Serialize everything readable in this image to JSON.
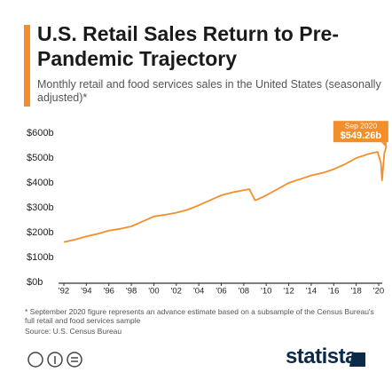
{
  "chart_data": {
    "type": "line",
    "title": "U.S. Retail Sales Return to Pre-Pandemic Trajectory",
    "subtitle": "Monthly retail and food services sales in the United States (seasonally adjusted)*",
    "footnote": "* September 2020 figure represents an advance estimate based on a subsample of the Census Bureau's full retail and food services sample",
    "source": "Source: U.S. Census Bureau",
    "brand": "statista",
    "annotation": "Sep 2020",
    "x": [
      1992,
      1993,
      1994,
      1995,
      1996,
      1997,
      1998,
      1999,
      2000,
      2001,
      2002,
      2003,
      2004,
      2005,
      2006,
      2007,
      2008.5,
      2009.0,
      2009.3,
      2010,
      2011,
      2012,
      2013,
      2014,
      2015,
      2016,
      2017,
      2018,
      2019,
      2019.9,
      2020.2,
      2020.3,
      2020.5,
      2020.7
    ],
    "series": [
      {
        "name": "Retail and food services sales",
        "color": "#f28e2b",
        "values": [
          162,
          172,
          185,
          195,
          208,
          215,
          225,
          245,
          265,
          272,
          280,
          292,
          310,
          330,
          350,
          362,
          375,
          330,
          335,
          350,
          375,
          400,
          415,
          430,
          440,
          455,
          475,
          500,
          515,
          525,
          480,
          410,
          520,
          549.26
        ],
        "value_labels": [
          null,
          null,
          null,
          null,
          null,
          null,
          null,
          null,
          null,
          null,
          null,
          null,
          null,
          null,
          null,
          null,
          null,
          null,
          null,
          null,
          null,
          null,
          null,
          null,
          null,
          null,
          null,
          null,
          null,
          null,
          null,
          null,
          null,
          "$549.26b"
        ]
      }
    ],
    "xlim": [
      1992,
      2020
    ],
    "xticks": [
      {
        "value": 1992,
        "label": "'92"
      },
      {
        "value": 1994,
        "label": "'94"
      },
      {
        "value": 1996,
        "label": "'96"
      },
      {
        "value": 1998,
        "label": "'98"
      },
      {
        "value": 2000,
        "label": "'00"
      },
      {
        "value": 2002,
        "label": "'02"
      },
      {
        "value": 2004,
        "label": "'04"
      },
      {
        "value": 2006,
        "label": "'06"
      },
      {
        "value": 2008,
        "label": "'08"
      },
      {
        "value": 2010,
        "label": "'10"
      },
      {
        "value": 2012,
        "label": "'12"
      },
      {
        "value": 2014,
        "label": "'14"
      },
      {
        "value": 2016,
        "label": "'16"
      },
      {
        "value": 2018,
        "label": "'18"
      },
      {
        "value": 2020,
        "label": "'20"
      }
    ],
    "ylim": [
      0,
      600
    ],
    "yticks": [
      {
        "value": 0,
        "label": "$0b"
      },
      {
        "value": 100,
        "label": "$100b"
      },
      {
        "value": 200,
        "label": "$200b"
      },
      {
        "value": 300,
        "label": "$300b"
      },
      {
        "value": 400,
        "label": "$400b"
      },
      {
        "value": 500,
        "label": "$500b"
      },
      {
        "value": 600,
        "label": "$600b"
      }
    ],
    "grid": false
  }
}
